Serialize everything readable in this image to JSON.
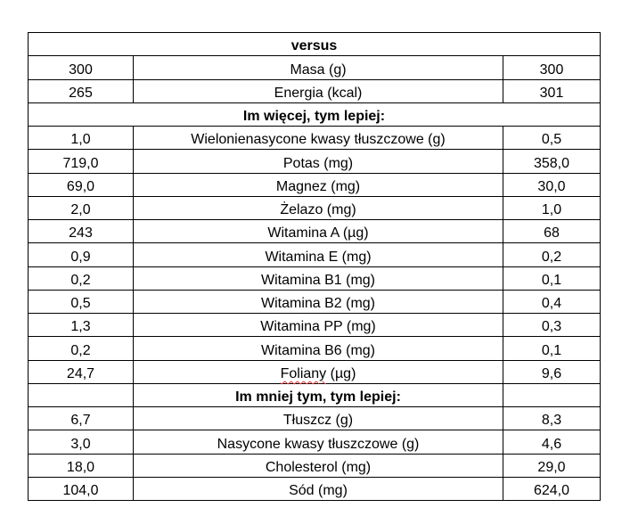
{
  "title": "versus",
  "top_rows": [
    {
      "left": "300",
      "label": "Masa (g)",
      "right": "300"
    },
    {
      "left": "265",
      "label": "Energia (kcal)",
      "right": "301"
    }
  ],
  "section_more": {
    "heading": "Im więcej, tym lepiej:",
    "rows": [
      {
        "left": "1,0",
        "label": "Wielonienasycone kwasy tłuszczowe (g)",
        "right": "0,5"
      },
      {
        "left": "719,0",
        "label": "Potas (mg)",
        "right": "358,0"
      },
      {
        "left": "69,0",
        "label": "Magnez (mg)",
        "right": "30,0"
      },
      {
        "left": "2,0",
        "label": "Żelazo (mg)",
        "right": "1,0"
      },
      {
        "left": "243",
        "label": "Witamina A (µg)",
        "right": "68"
      },
      {
        "left": "0,9",
        "label": "Witamina E (mg)",
        "right": "0,2"
      },
      {
        "left": "0,2",
        "label": "Witamina B1 (mg)",
        "right": "0,1"
      },
      {
        "left": "0,5",
        "label": "Witamina B2 (mg)",
        "right": "0,4"
      },
      {
        "left": "1,3",
        "label": "Witamina PP (mg)",
        "right": "0,3"
      },
      {
        "left": "0,2",
        "label": "Witamina B6 (mg)",
        "right": "0,1"
      }
    ],
    "folate": {
      "left": "24,7",
      "label_word": "Foliany",
      "label_unit": " (µg)",
      "right": "9,6"
    }
  },
  "section_less": {
    "heading": "Im mniej tym, tym lepiej:",
    "rows": [
      {
        "left": "6,7",
        "label": "Tłuszcz (g)",
        "right": "8,3"
      },
      {
        "left": "3,0",
        "label": "Nasycone kwasy tłuszczowe (g)",
        "right": "4,6"
      },
      {
        "left": "18,0",
        "label": "Cholesterol (mg)",
        "right": "29,0"
      },
      {
        "left": "104,0",
        "label": "Sód (mg)",
        "right": "624,0"
      }
    ]
  }
}
